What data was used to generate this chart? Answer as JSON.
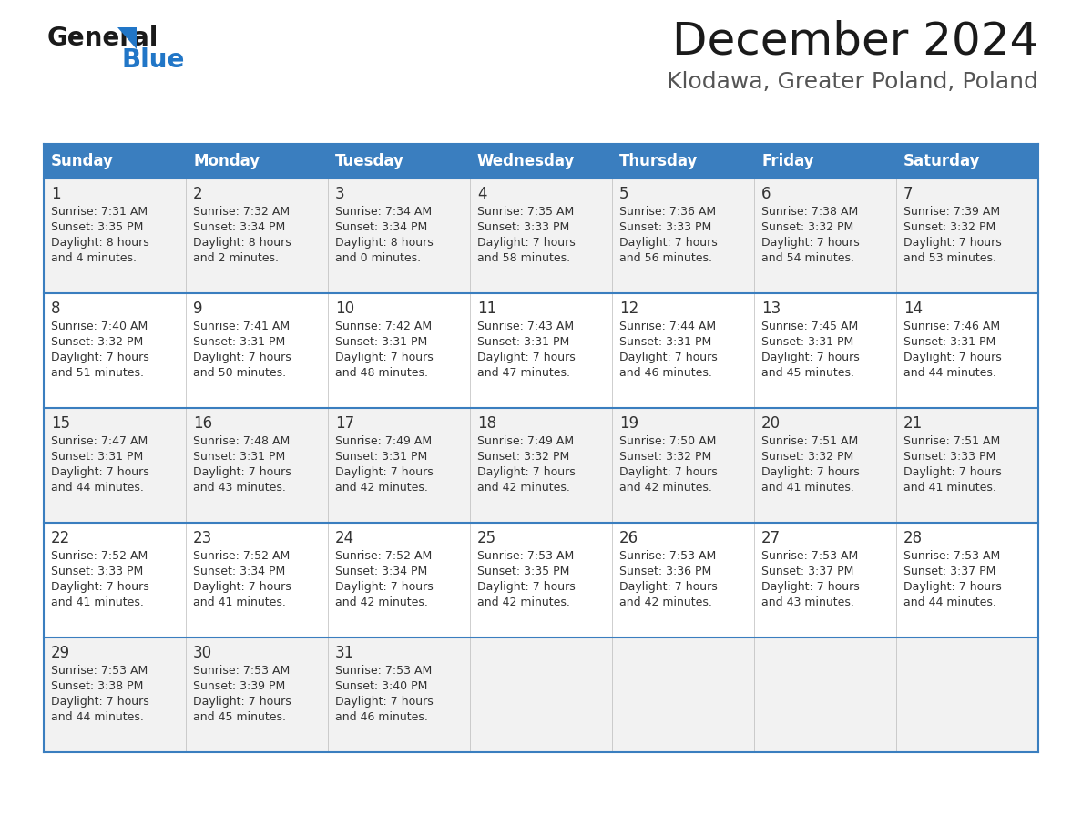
{
  "title": "December 2024",
  "subtitle": "Klodawa, Greater Poland, Poland",
  "header_color": "#3a7ebf",
  "header_text_color": "#ffffff",
  "cell_bg_even": "#f2f2f2",
  "cell_bg_odd": "#ffffff",
  "day_number_color": "#333333",
  "text_color": "#333333",
  "line_color": "#3a7ebf",
  "days_of_week": [
    "Sunday",
    "Monday",
    "Tuesday",
    "Wednesday",
    "Thursday",
    "Friday",
    "Saturday"
  ],
  "weeks": [
    [
      {
        "day": "1",
        "sunrise": "7:31 AM",
        "sunset": "3:35 PM",
        "daylight_h": "8 hours",
        "daylight_m": "and 4 minutes."
      },
      {
        "day": "2",
        "sunrise": "7:32 AM",
        "sunset": "3:34 PM",
        "daylight_h": "8 hours",
        "daylight_m": "and 2 minutes."
      },
      {
        "day": "3",
        "sunrise": "7:34 AM",
        "sunset": "3:34 PM",
        "daylight_h": "8 hours",
        "daylight_m": "and 0 minutes."
      },
      {
        "day": "4",
        "sunrise": "7:35 AM",
        "sunset": "3:33 PM",
        "daylight_h": "7 hours",
        "daylight_m": "and 58 minutes."
      },
      {
        "day": "5",
        "sunrise": "7:36 AM",
        "sunset": "3:33 PM",
        "daylight_h": "7 hours",
        "daylight_m": "and 56 minutes."
      },
      {
        "day": "6",
        "sunrise": "7:38 AM",
        "sunset": "3:32 PM",
        "daylight_h": "7 hours",
        "daylight_m": "and 54 minutes."
      },
      {
        "day": "7",
        "sunrise": "7:39 AM",
        "sunset": "3:32 PM",
        "daylight_h": "7 hours",
        "daylight_m": "and 53 minutes."
      }
    ],
    [
      {
        "day": "8",
        "sunrise": "7:40 AM",
        "sunset": "3:32 PM",
        "daylight_h": "7 hours",
        "daylight_m": "and 51 minutes."
      },
      {
        "day": "9",
        "sunrise": "7:41 AM",
        "sunset": "3:31 PM",
        "daylight_h": "7 hours",
        "daylight_m": "and 50 minutes."
      },
      {
        "day": "10",
        "sunrise": "7:42 AM",
        "sunset": "3:31 PM",
        "daylight_h": "7 hours",
        "daylight_m": "and 48 minutes."
      },
      {
        "day": "11",
        "sunrise": "7:43 AM",
        "sunset": "3:31 PM",
        "daylight_h": "7 hours",
        "daylight_m": "and 47 minutes."
      },
      {
        "day": "12",
        "sunrise": "7:44 AM",
        "sunset": "3:31 PM",
        "daylight_h": "7 hours",
        "daylight_m": "and 46 minutes."
      },
      {
        "day": "13",
        "sunrise": "7:45 AM",
        "sunset": "3:31 PM",
        "daylight_h": "7 hours",
        "daylight_m": "and 45 minutes."
      },
      {
        "day": "14",
        "sunrise": "7:46 AM",
        "sunset": "3:31 PM",
        "daylight_h": "7 hours",
        "daylight_m": "and 44 minutes."
      }
    ],
    [
      {
        "day": "15",
        "sunrise": "7:47 AM",
        "sunset": "3:31 PM",
        "daylight_h": "7 hours",
        "daylight_m": "and 44 minutes."
      },
      {
        "day": "16",
        "sunrise": "7:48 AM",
        "sunset": "3:31 PM",
        "daylight_h": "7 hours",
        "daylight_m": "and 43 minutes."
      },
      {
        "day": "17",
        "sunrise": "7:49 AM",
        "sunset": "3:31 PM",
        "daylight_h": "7 hours",
        "daylight_m": "and 42 minutes."
      },
      {
        "day": "18",
        "sunrise": "7:49 AM",
        "sunset": "3:32 PM",
        "daylight_h": "7 hours",
        "daylight_m": "and 42 minutes."
      },
      {
        "day": "19",
        "sunrise": "7:50 AM",
        "sunset": "3:32 PM",
        "daylight_h": "7 hours",
        "daylight_m": "and 42 minutes."
      },
      {
        "day": "20",
        "sunrise": "7:51 AM",
        "sunset": "3:32 PM",
        "daylight_h": "7 hours",
        "daylight_m": "and 41 minutes."
      },
      {
        "day": "21",
        "sunrise": "7:51 AM",
        "sunset": "3:33 PM",
        "daylight_h": "7 hours",
        "daylight_m": "and 41 minutes."
      }
    ],
    [
      {
        "day": "22",
        "sunrise": "7:52 AM",
        "sunset": "3:33 PM",
        "daylight_h": "7 hours",
        "daylight_m": "and 41 minutes."
      },
      {
        "day": "23",
        "sunrise": "7:52 AM",
        "sunset": "3:34 PM",
        "daylight_h": "7 hours",
        "daylight_m": "and 41 minutes."
      },
      {
        "day": "24",
        "sunrise": "7:52 AM",
        "sunset": "3:34 PM",
        "daylight_h": "7 hours",
        "daylight_m": "and 42 minutes."
      },
      {
        "day": "25",
        "sunrise": "7:53 AM",
        "sunset": "3:35 PM",
        "daylight_h": "7 hours",
        "daylight_m": "and 42 minutes."
      },
      {
        "day": "26",
        "sunrise": "7:53 AM",
        "sunset": "3:36 PM",
        "daylight_h": "7 hours",
        "daylight_m": "and 42 minutes."
      },
      {
        "day": "27",
        "sunrise": "7:53 AM",
        "sunset": "3:37 PM",
        "daylight_h": "7 hours",
        "daylight_m": "and 43 minutes."
      },
      {
        "day": "28",
        "sunrise": "7:53 AM",
        "sunset": "3:37 PM",
        "daylight_h": "7 hours",
        "daylight_m": "and 44 minutes."
      }
    ],
    [
      {
        "day": "29",
        "sunrise": "7:53 AM",
        "sunset": "3:38 PM",
        "daylight_h": "7 hours",
        "daylight_m": "and 44 minutes."
      },
      {
        "day": "30",
        "sunrise": "7:53 AM",
        "sunset": "3:39 PM",
        "daylight_h": "7 hours",
        "daylight_m": "and 45 minutes."
      },
      {
        "day": "31",
        "sunrise": "7:53 AM",
        "sunset": "3:40 PM",
        "daylight_h": "7 hours",
        "daylight_m": "and 46 minutes."
      },
      null,
      null,
      null,
      null
    ]
  ],
  "fig_width": 11.88,
  "fig_height": 9.18,
  "dpi": 100
}
